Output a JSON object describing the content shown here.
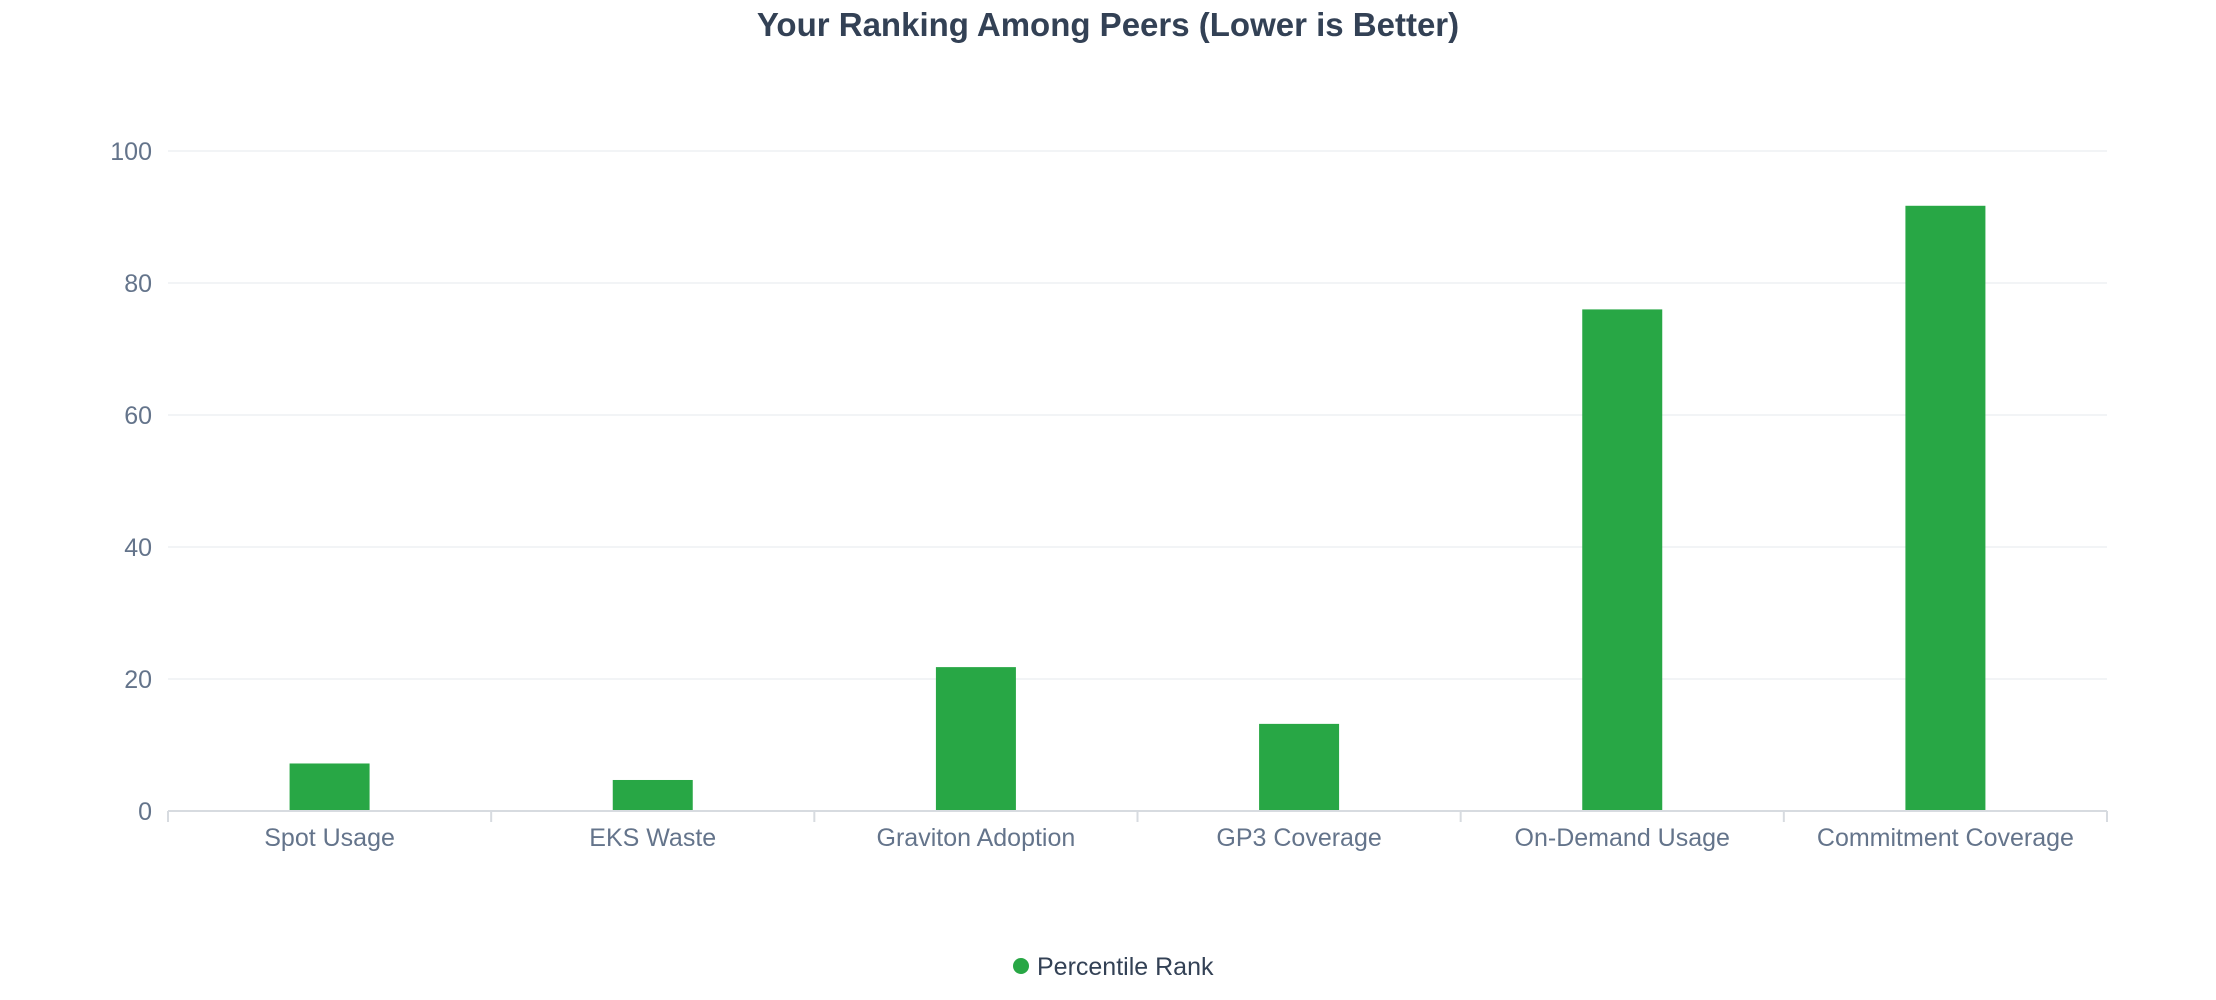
{
  "chart_data": {
    "type": "bar",
    "title": "Your Ranking Among Peers (Lower is Better)",
    "categories": [
      "Spot Usage",
      "EKS Waste",
      "Graviton Adoption",
      "GP3 Coverage",
      "On-Demand Usage",
      "Commitment Coverage"
    ],
    "series": [
      {
        "name": "Percentile Rank",
        "values": [
          7.2,
          4.7,
          21.8,
          13.2,
          76,
          91.7
        ],
        "color": "#28a745"
      }
    ],
    "ylim": [
      0,
      100
    ],
    "yticks": [
      "0",
      "20",
      "40",
      "60",
      "80",
      "100"
    ],
    "xlabel": "",
    "ylabel": "",
    "grid": true,
    "legend_position": "bottom-center"
  }
}
